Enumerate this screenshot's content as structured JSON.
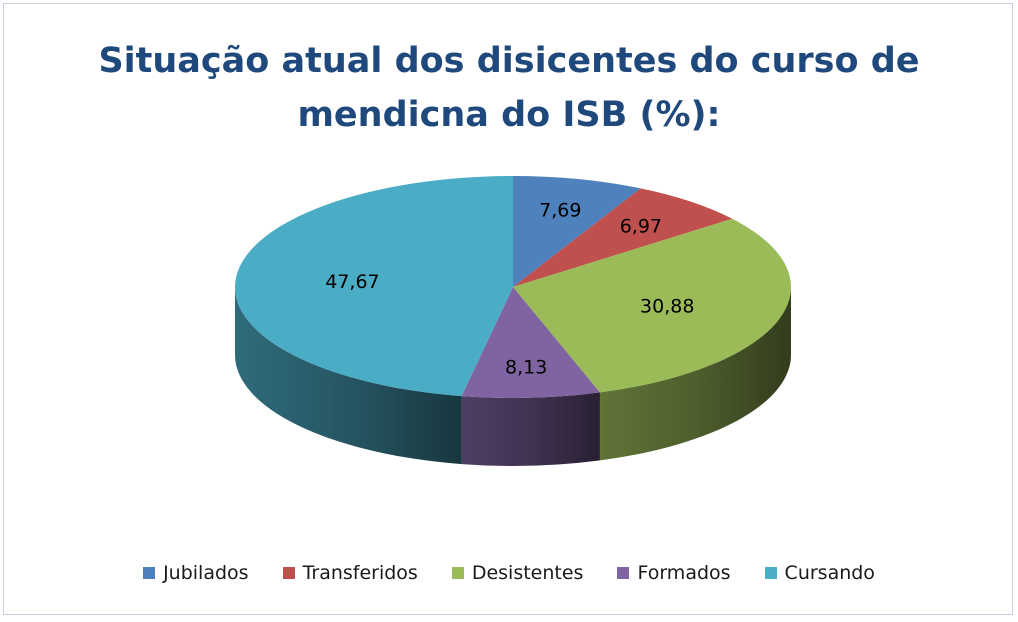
{
  "chart_data": {
    "type": "pie",
    "title_lines": [
      "Situação atual dos disicentes do curso de",
      "mendicna do ISB (%):"
    ],
    "categories": [
      "Jubilados",
      "Transferidos",
      "Desistentes",
      "Formados",
      "Cursando"
    ],
    "values": [
      7.69,
      6.97,
      30.88,
      8.13,
      47.67
    ],
    "value_labels": [
      "7,69",
      "6,97",
      "30,88",
      "8,13",
      "47,67"
    ],
    "colors": [
      "#4f81bd",
      "#c0504d",
      "#9bbb59",
      "#8064a2",
      "#4bacc6"
    ],
    "legend_position": "bottom"
  }
}
